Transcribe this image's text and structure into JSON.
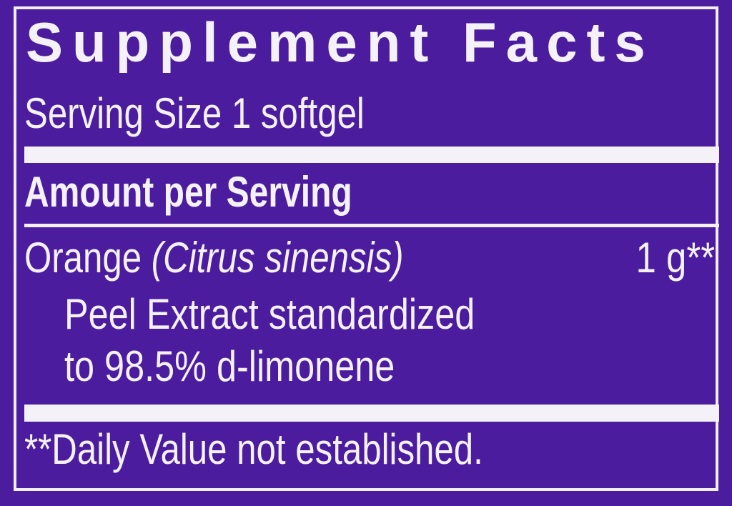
{
  "label": {
    "title": "Supplement Facts",
    "serving_size": "Serving Size 1 softgel",
    "amount_header": "Amount per Serving",
    "ingredient": {
      "name": "Orange",
      "latin": "(Citrus sinensis)",
      "amount": "1 g**",
      "line2": "Peel Extract standardized",
      "line3": "to 98.5% d-limonene"
    },
    "footnote": "**Daily Value not established."
  },
  "colors": {
    "background": "#4b1c9e",
    "text": "#f4f1f8"
  }
}
